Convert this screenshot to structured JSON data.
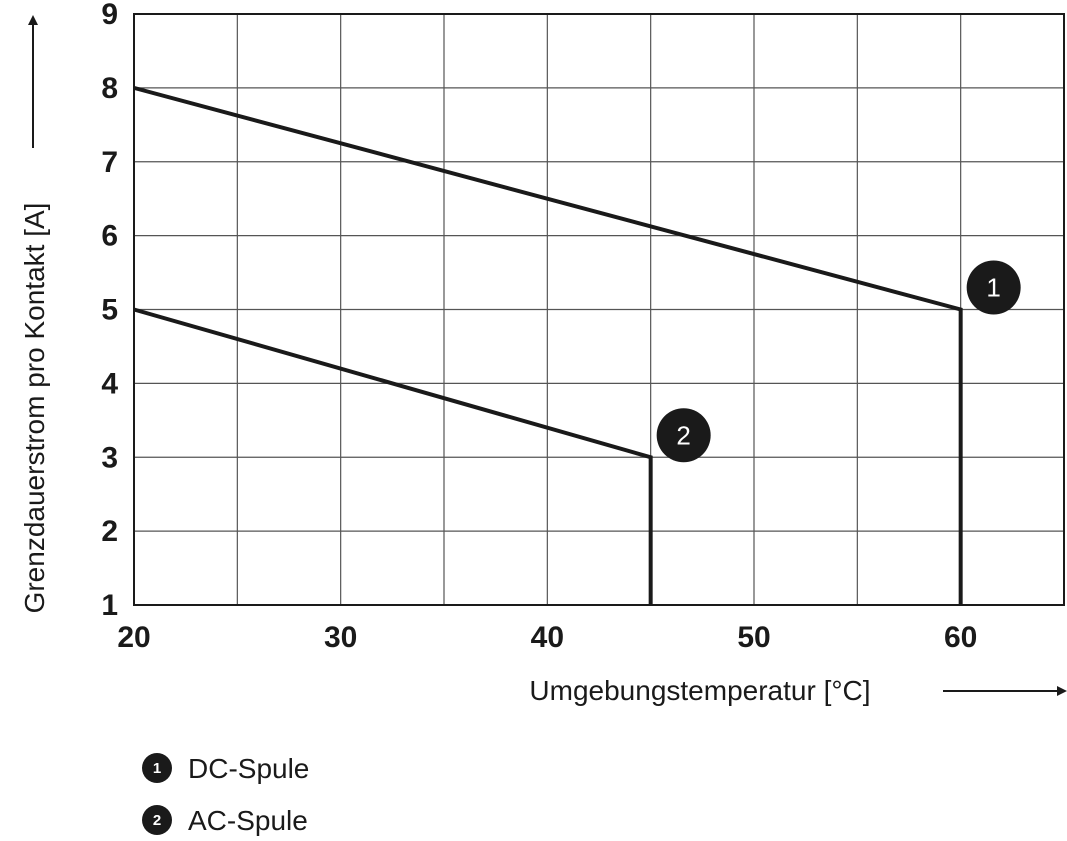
{
  "chart_data": {
    "type": "line",
    "title": "",
    "xlabel": "Umgebungstemperatur [°C]",
    "ylabel": "Grenzdauerstrom pro Kontakt [A]",
    "xlim": [
      20,
      65
    ],
    "ylim": [
      1,
      9
    ],
    "x_ticks": [
      20,
      25,
      30,
      35,
      40,
      45,
      50,
      55,
      60,
      65
    ],
    "x_tick_labels": [
      "20",
      "30",
      "40",
      "50",
      "60"
    ],
    "x_tick_label_values": [
      20,
      30,
      40,
      50,
      60
    ],
    "y_ticks": [
      1,
      2,
      3,
      4,
      5,
      6,
      7,
      8,
      9
    ],
    "y_tick_labels": [
      "1",
      "2",
      "3",
      "4",
      "5",
      "6",
      "7",
      "8",
      "9"
    ],
    "grid": true,
    "legend_position": "bottom-left",
    "line_color": "#1a1a1a",
    "series": [
      {
        "name": "DC-Spule",
        "marker": "1",
        "points": [
          [
            20,
            8
          ],
          [
            60,
            5
          ],
          [
            60,
            1
          ]
        ]
      },
      {
        "name": "AC-Spule",
        "marker": "2",
        "points": [
          [
            20,
            5
          ],
          [
            45,
            3
          ],
          [
            45,
            1
          ]
        ]
      }
    ]
  }
}
